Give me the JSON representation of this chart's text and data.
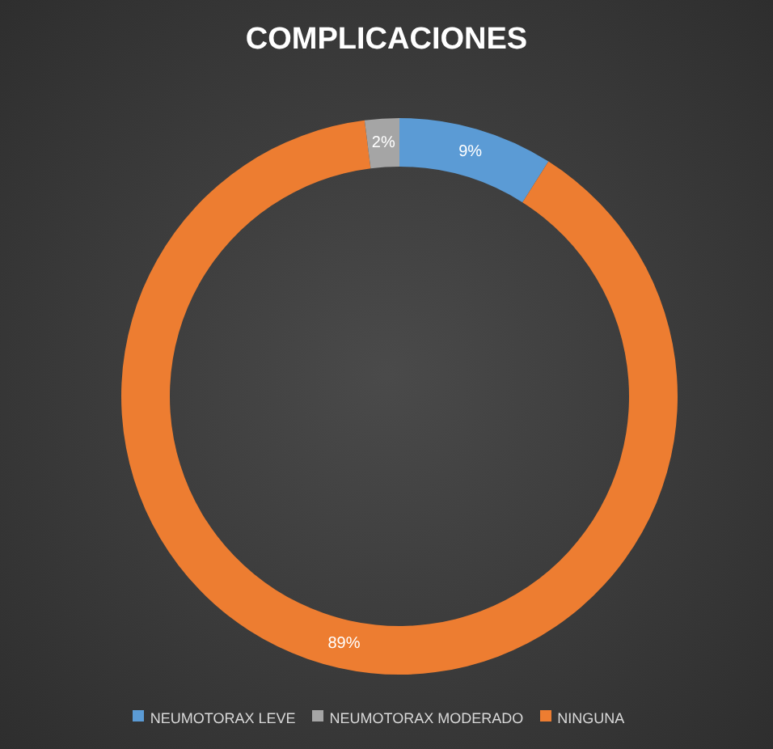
{
  "chart_data": {
    "type": "donut",
    "title": "COMPLICACIONES",
    "categories": [
      "NEUMOTORAX LEVE",
      "NINGUNA",
      "NEUMOTORAX MODERADO"
    ],
    "values": [
      9,
      89,
      2
    ],
    "colors": [
      "#5b9bd5",
      "#ed7d31",
      "#a5a5a5"
    ],
    "value_labels": [
      "9%",
      "89%",
      "2%"
    ],
    "legend": "bottom"
  }
}
